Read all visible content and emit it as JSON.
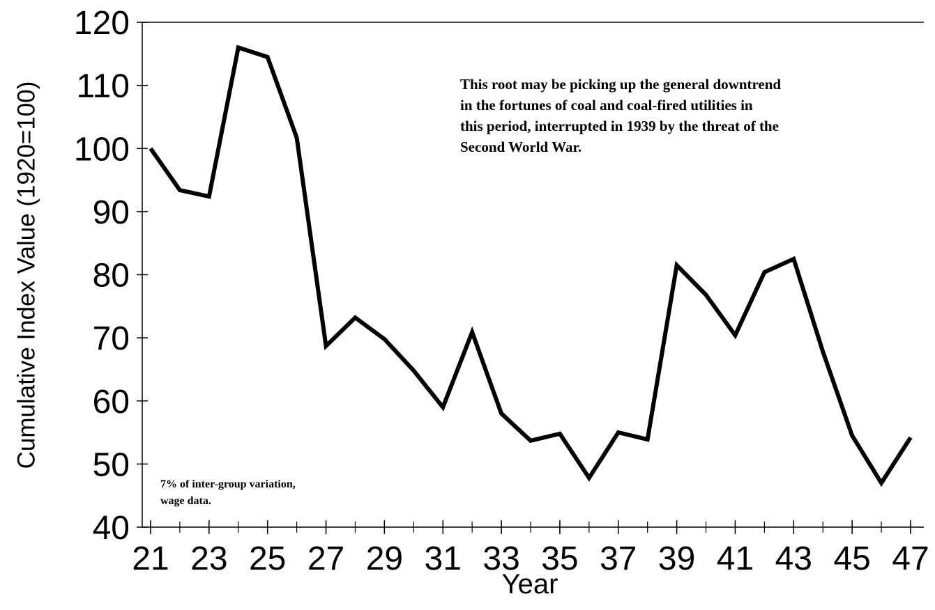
{
  "chart_data": {
    "type": "line",
    "xlabel": "Year",
    "ylabel": "Cumulative Index Value (1920=100)",
    "x": [
      21,
      22,
      23,
      24,
      25,
      26,
      27,
      28,
      29,
      30,
      31,
      32,
      33,
      34,
      35,
      36,
      37,
      38,
      39,
      40,
      41,
      42,
      43,
      44,
      45,
      46,
      47
    ],
    "series": [
      {
        "color": "#000000",
        "values": [
          100,
          93.4,
          92.4,
          116,
          114.5,
          101.7,
          68.7,
          73.2,
          69.8,
          64.8,
          59,
          70.9,
          58,
          53.7,
          54.8,
          47.8,
          55,
          53.9,
          81.5,
          76.8,
          70.4,
          80.4,
          82.5,
          67.8,
          54.5,
          47,
          54.2
        ]
      }
    ],
    "xlim": [
      21,
      47
    ],
    "xticks": [
      21,
      23,
      25,
      27,
      29,
      31,
      33,
      35,
      37,
      39,
      41,
      43,
      45,
      47
    ],
    "ylim": [
      40,
      120
    ],
    "yticks": [
      40,
      50,
      60,
      70,
      80,
      90,
      100,
      110,
      120
    ],
    "annotations": [
      {
        "lines": [
          "This root may be picking up the general downtrend",
          "in the  fortunes of coal and coal-fired utilities in",
          "this period, interrupted in 1939 by the threat of the",
          "Second World War."
        ]
      },
      {
        "lines": [
          "7% of inter-group variation,",
          "wage data."
        ]
      }
    ]
  }
}
